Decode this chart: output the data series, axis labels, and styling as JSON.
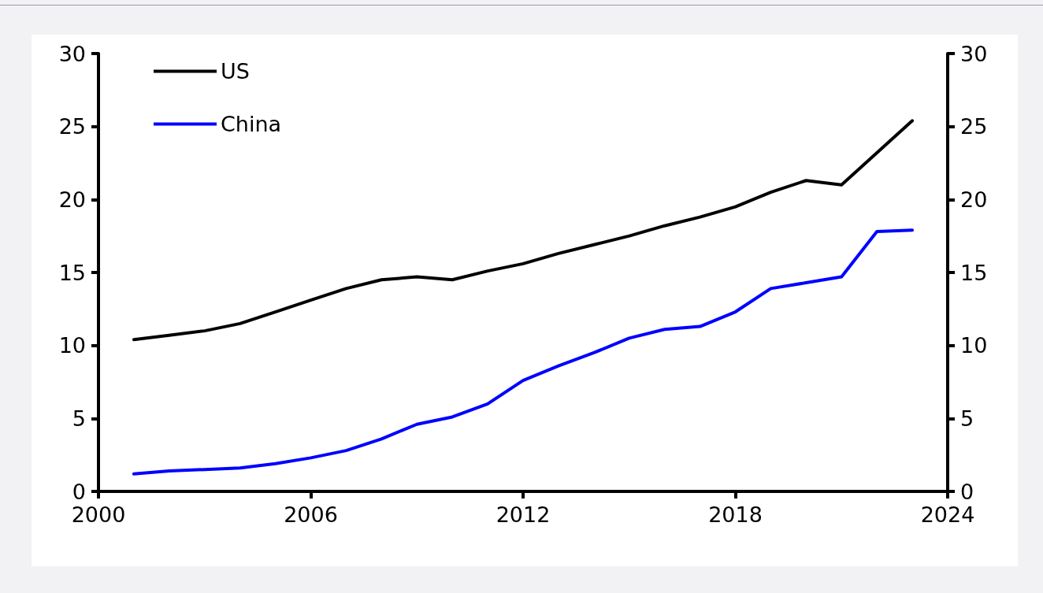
{
  "chart_data": {
    "type": "line",
    "x": [
      2001,
      2002,
      2003,
      2004,
      2005,
      2006,
      2007,
      2008,
      2009,
      2010,
      2011,
      2012,
      2013,
      2014,
      2015,
      2016,
      2017,
      2018,
      2019,
      2020,
      2021,
      2022,
      2023
    ],
    "series": [
      {
        "name": "US",
        "color": "#000000",
        "values": [
          10.4,
          10.7,
          11.0,
          11.5,
          12.3,
          13.1,
          13.9,
          14.5,
          14.7,
          14.5,
          15.1,
          15.6,
          16.3,
          16.9,
          17.5,
          18.2,
          18.8,
          19.5,
          20.5,
          21.3,
          21.0,
          23.2,
          25.4
        ]
      },
      {
        "name": "China",
        "color": "#0000ff",
        "values": [
          1.2,
          1.4,
          1.5,
          1.6,
          1.9,
          2.3,
          2.8,
          3.6,
          4.6,
          5.1,
          6.0,
          7.6,
          8.6,
          9.5,
          10.5,
          11.1,
          11.3,
          12.3,
          13.9,
          14.3,
          14.7,
          17.8,
          17.9
        ]
      }
    ],
    "xlim": [
      2000,
      2024
    ],
    "xticks": [
      2000,
      2006,
      2012,
      2018,
      2024
    ],
    "ylim": [
      0,
      30
    ],
    "yticks": [
      0,
      5,
      10,
      15,
      20,
      25,
      30
    ],
    "y2lim": [
      0,
      30
    ],
    "y2ticks": [
      0,
      5,
      10,
      15,
      20,
      25,
      30
    ],
    "grid": false,
    "legend": "top left",
    "marker": "none",
    "line_style": "solid"
  }
}
